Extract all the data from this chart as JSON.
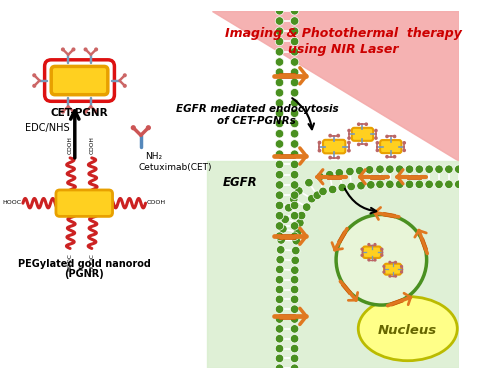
{
  "title_line1": "Imaging & Photothermal  therapy",
  "title_line2": "using NIR Laser",
  "title_color": "#CC0000",
  "bg_pink_color": "#F4AAAA",
  "bg_green_color": "#D8EDCC",
  "label_cet_pgnr": "CET-PGNR",
  "label_edc_nhs": "EDC/NHS",
  "label_cetuximab": "Cetuximab(CET)",
  "label_nh2": "NH₂",
  "label_pgnr_line1": "PEGylated gold nanorod",
  "label_pgnr_line2": "(PGNR)",
  "label_egfr": "EGFR",
  "label_endocytosis_line1": "EGFR mediated endocytosis",
  "label_endocytosis_line2": "of CET-PGNRs",
  "label_nucleus": "Nucleus",
  "gold_color": "#FFD020",
  "gold_dark": "#E8A000",
  "orange_color": "#E07820",
  "green_color": "#4A9020",
  "green_pale": "#E8F5D8",
  "blue_ab": "#5588BB",
  "red_ab": "#CC4444",
  "peg_color": "#CC2222"
}
